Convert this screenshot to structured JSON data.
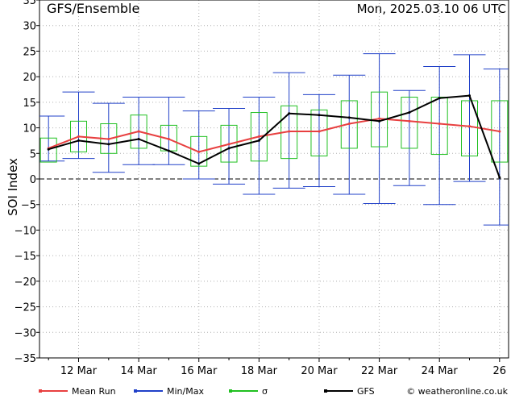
{
  "header": {
    "title": "GFS/Ensemble",
    "datetime": "Mon, 2025.03.10  06 UTC"
  },
  "footer": {
    "credit": "© weatheronline.co.uk"
  },
  "colors": {
    "mean": "#e84040",
    "minmax": "#2040c8",
    "sigma": "#20c020",
    "gfs": "#000000",
    "grid": "#b0b0b0"
  },
  "chart_data": {
    "type": "line",
    "title": "GFS/Ensemble",
    "ylabel": "SOI Index",
    "xlabel": "",
    "ylim": [
      -35,
      35
    ],
    "yticks": [
      35,
      30,
      25,
      20,
      15,
      10,
      5,
      0,
      -5,
      -10,
      -15,
      -20,
      -25,
      -30,
      -35
    ],
    "xlim": [
      10.7,
      26.3
    ],
    "xtick_values": [
      12,
      14,
      16,
      18,
      20,
      22,
      24,
      26
    ],
    "xtick_labels": [
      "12 Mar",
      "14 Mar",
      "16 Mar",
      "18 Mar",
      "20 Mar",
      "22 Mar",
      "24 Mar",
      "26"
    ],
    "grid": true,
    "legend_position": "bottom",
    "x": [
      11,
      12,
      13,
      14,
      15,
      16,
      17,
      18,
      19,
      20,
      21,
      22,
      23,
      24,
      25,
      26
    ],
    "series": [
      {
        "name": "Mean Run",
        "legend_label": "Mean Run",
        "key": "mean",
        "values": [
          6.0,
          8.3,
          7.8,
          9.3,
          7.8,
          5.3,
          6.8,
          8.3,
          9.3,
          9.3,
          10.8,
          11.8,
          11.3,
          10.8,
          10.3,
          9.3
        ]
      },
      {
        "name": "GFS",
        "legend_label": "GFS",
        "key": "gfs",
        "values": [
          5.8,
          7.5,
          6.8,
          7.8,
          5.5,
          3.0,
          6.0,
          7.5,
          12.8,
          12.5,
          12.0,
          11.3,
          13.0,
          15.8,
          16.3,
          0.3
        ]
      }
    ],
    "minmax": {
      "legend_label": "Min/Max",
      "min": [
        3.5,
        4.0,
        1.3,
        2.8,
        2.8,
        0.0,
        -1.0,
        -3.0,
        -1.8,
        -1.5,
        -3.0,
        -4.8,
        -1.3,
        -5.0,
        -0.5,
        -9.0
      ],
      "max": [
        12.3,
        17.0,
        14.8,
        16.0,
        16.0,
        13.3,
        13.8,
        16.0,
        20.8,
        16.5,
        20.3,
        24.5,
        17.3,
        22.0,
        24.3,
        21.5
      ]
    },
    "sigma": {
      "legend_label": "σ",
      "low": [
        3.3,
        5.3,
        5.0,
        6.0,
        5.5,
        2.5,
        3.3,
        3.5,
        4.0,
        4.5,
        6.0,
        6.3,
        6.0,
        4.8,
        4.5,
        3.3
      ],
      "high": [
        8.0,
        11.3,
        10.8,
        12.5,
        10.5,
        8.3,
        10.5,
        13.0,
        14.3,
        13.5,
        15.3,
        17.0,
        16.0,
        16.0,
        15.3,
        15.3
      ]
    }
  }
}
